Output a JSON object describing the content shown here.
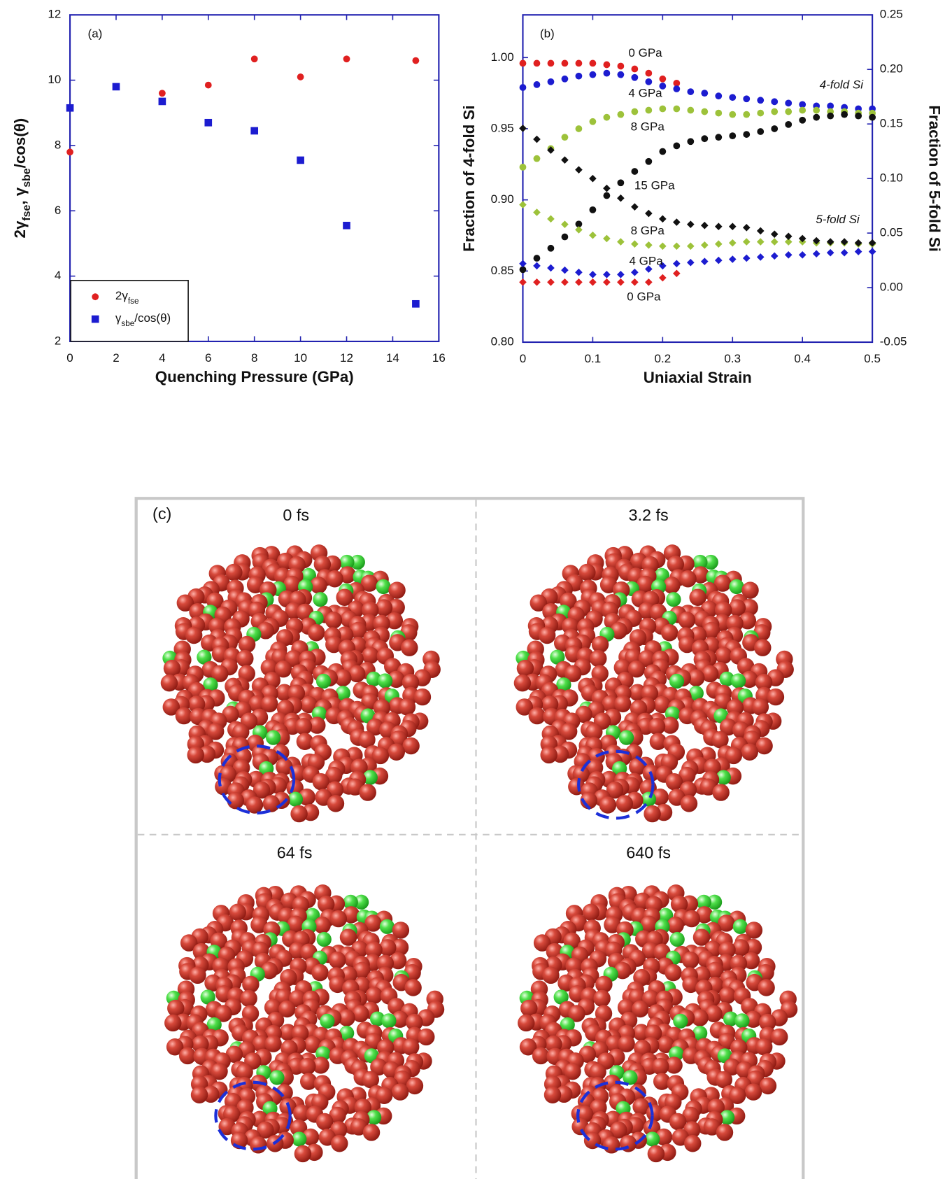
{
  "chart_data": [
    {
      "type": "scatter",
      "panel_label": "(a)",
      "x_label": "Quenching Pressure (GPa)",
      "y_label": [
        "2γ",
        "fse",
        ", γ",
        "sbe",
        "/cos(θ)"
      ],
      "x": [
        0,
        2,
        4,
        6,
        8,
        10,
        12,
        15
      ],
      "series": [
        {
          "name": [
            "2γ",
            "fse"
          ],
          "color": "#e02020",
          "marker": "circle",
          "values": [
            7.8,
            9.8,
            9.6,
            9.85,
            10.65,
            10.1,
            10.65,
            10.6
          ]
        },
        {
          "name": [
            "γ",
            "sbe",
            "/cos(θ)"
          ],
          "color": "#1c1cd0",
          "marker": "square",
          "values": [
            9.15,
            9.8,
            9.35,
            8.7,
            8.45,
            7.55,
            5.55,
            3.15
          ]
        }
      ],
      "xlim": [
        0,
        16
      ],
      "xticks": [
        0,
        2,
        4,
        6,
        8,
        10,
        12,
        14,
        16
      ],
      "ylim": [
        2,
        12
      ],
      "yticks": [
        2,
        4,
        6,
        8,
        10,
        12
      ],
      "legend": "lower left",
      "grid": false
    },
    {
      "type": "scatter",
      "panel_label": "(b)",
      "x_label": "Uniaxial Strain",
      "y_label": "Fraction of 4-fold Si",
      "y2_label": "Fraction of 5-fold Si",
      "x": [
        0,
        0.02,
        0.04,
        0.06,
        0.08,
        0.1,
        0.12,
        0.14,
        0.16,
        0.18,
        0.2,
        0.22,
        0.24,
        0.26,
        0.28,
        0.3,
        0.32,
        0.34,
        0.36,
        0.38,
        0.4,
        0.42,
        0.44,
        0.46,
        0.48,
        0.5
      ],
      "series": [
        {
          "name": "0 GPa",
          "color": "#e02020",
          "marker": "circle",
          "values": [
            0.996,
            0.996,
            0.996,
            0.996,
            0.996,
            0.996,
            0.995,
            0.994,
            0.992,
            0.989,
            0.985,
            0.982,
            null,
            null,
            null,
            null,
            null,
            null,
            null,
            null,
            null,
            null,
            null,
            null,
            null,
            null
          ]
        },
        {
          "name": "4 GPa",
          "color": "#1c1cd0",
          "marker": "circle",
          "values": [
            0.979,
            0.981,
            0.983,
            0.985,
            0.987,
            0.988,
            0.989,
            0.988,
            0.986,
            0.983,
            0.98,
            0.978,
            0.976,
            0.975,
            0.973,
            0.972,
            0.971,
            0.97,
            0.969,
            0.968,
            0.967,
            0.966,
            0.966,
            0.965,
            0.964,
            0.964
          ]
        },
        {
          "name": "8 GPa",
          "color": "#9dc23a",
          "marker": "circle",
          "values": [
            0.923,
            0.929,
            0.936,
            0.944,
            0.95,
            0.955,
            0.958,
            0.96,
            0.962,
            0.963,
            0.964,
            0.964,
            0.963,
            0.962,
            0.961,
            0.96,
            0.96,
            0.961,
            0.962,
            0.962,
            0.963,
            0.963,
            0.962,
            0.962,
            0.961,
            0.961
          ]
        },
        {
          "name": "15 GPa",
          "color": "#111111",
          "marker": "circle",
          "values": [
            0.851,
            0.859,
            0.866,
            0.874,
            0.883,
            0.893,
            0.903,
            0.912,
            0.92,
            0.927,
            0.934,
            0.938,
            0.941,
            0.943,
            0.944,
            0.945,
            0.946,
            0.948,
            0.95,
            0.953,
            0.956,
            0.958,
            0.959,
            0.96,
            0.959,
            0.958
          ]
        },
        {
          "name": "0 GPa",
          "color": "#e02020",
          "marker": "diamond",
          "axis": "y2",
          "values": [
            0.005,
            0.005,
            0.005,
            0.005,
            0.005,
            0.005,
            0.005,
            0.005,
            0.005,
            0.005,
            0.009,
            0.013,
            null,
            null,
            null,
            null,
            null,
            null,
            null,
            null,
            null,
            null,
            null,
            null,
            null,
            null
          ]
        },
        {
          "name": "4 GPa",
          "color": "#1c1cd0",
          "marker": "diamond",
          "axis": "y2",
          "values": [
            0.022,
            0.02,
            0.018,
            0.016,
            0.014,
            0.012,
            0.012,
            0.012,
            0.014,
            0.017,
            0.02,
            0.022,
            0.023,
            0.024,
            0.025,
            0.026,
            0.027,
            0.028,
            0.029,
            0.03,
            0.03,
            0.031,
            0.032,
            0.032,
            0.033,
            0.033
          ]
        },
        {
          "name": "8 GPa",
          "color": "#9dc23a",
          "marker": "diamond",
          "axis": "y2",
          "values": [
            0.076,
            0.069,
            0.063,
            0.058,
            0.053,
            0.048,
            0.045,
            0.042,
            0.04,
            0.039,
            0.038,
            0.038,
            0.038,
            0.039,
            0.04,
            0.041,
            0.042,
            0.042,
            0.042,
            0.042,
            0.042,
            0.041,
            0.041,
            0.041,
            0.04,
            0.04
          ]
        },
        {
          "color": "#111111",
          "marker": "diamond",
          "axis": "y2",
          "values": [
            0.146,
            0.136,
            0.126,
            0.117,
            0.108,
            0.1,
            0.091,
            0.082,
            0.074,
            0.068,
            0.063,
            0.06,
            0.058,
            0.057,
            0.056,
            0.056,
            0.055,
            0.052,
            0.049,
            0.047,
            0.045,
            0.043,
            0.042,
            0.042,
            0.041,
            0.041
          ]
        }
      ],
      "annotations": [
        {
          "text": "4-fold Si",
          "color": "#e02020"
        },
        {
          "text": "5-fold Si",
          "color": "#1c1cd0"
        }
      ],
      "xlim": [
        0,
        0.5
      ],
      "xticks": [
        0,
        0.1,
        0.2,
        0.3,
        0.4,
        0.5
      ],
      "ylim": [
        0.8,
        1.03
      ],
      "yticks": [
        {
          "value": 0.8,
          "label": "0.80"
        },
        0.85,
        {
          "value": 0.9,
          "label": "0.90"
        },
        0.95,
        {
          "value": 1,
          "label": "1.00"
        }
      ],
      "y2lim": [
        -0.05,
        0.25
      ],
      "y2ticks": [
        -0.05,
        {
          "value": 0,
          "label": "0.00"
        },
        0.05,
        {
          "value": 0.1,
          "label": "0.10"
        },
        0.15,
        {
          "value": 0.2,
          "label": "0.20"
        },
        0.25
      ],
      "grid": false
    }
  ],
  "panel_c": {
    "label": "(c)",
    "frames": [
      "0 fs",
      "3.2 fs",
      "64 fs",
      "640 fs"
    ]
  }
}
